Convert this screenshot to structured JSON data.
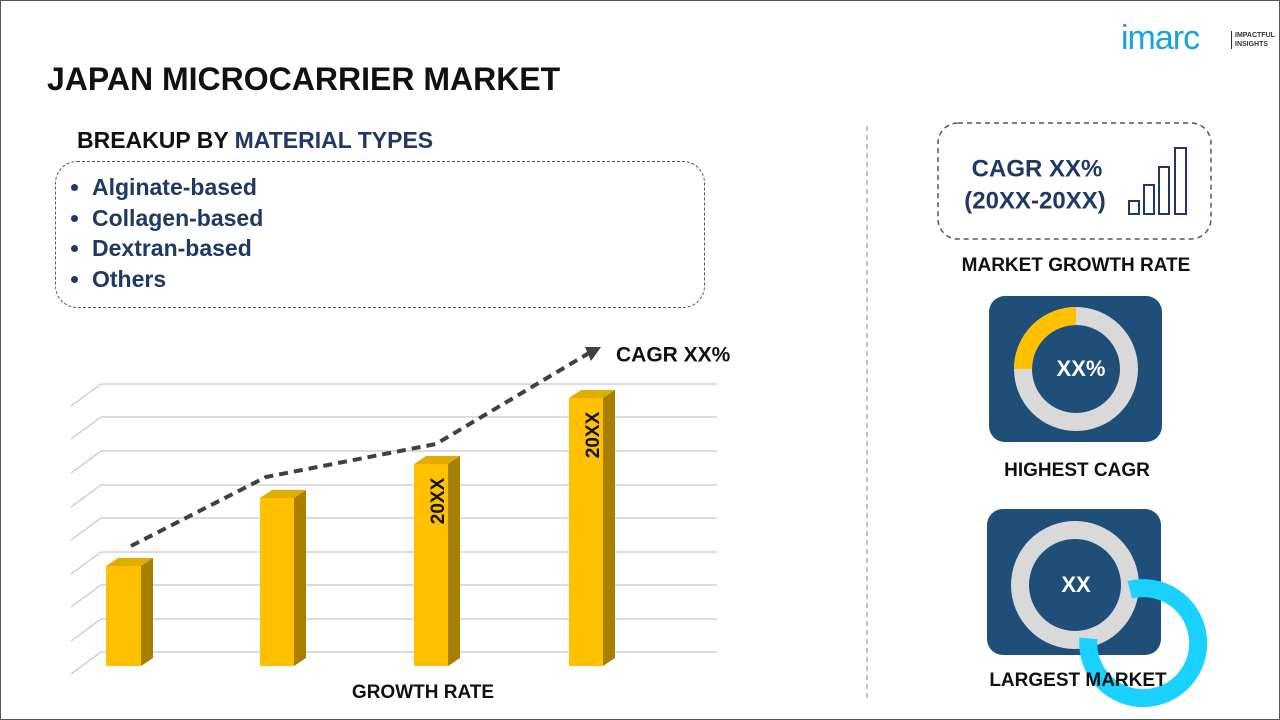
{
  "header": {
    "title": "JAPAN MICROCARRIER MARKET",
    "logo": "imarc",
    "tagline": [
      "IMPACTFUL",
      "INSIGHTS"
    ]
  },
  "breakup": {
    "label": "BREAKUP BY",
    "highlight": "MATERIAL TYPES",
    "items": [
      "Alginate-based",
      "Collagen-based",
      "Dextran-based",
      "Others"
    ]
  },
  "growth_chart": {
    "trend_label": "CAGR XX%",
    "bar_labels": [
      "20XX",
      "20XX"
    ],
    "axis_label": "GROWTH RATE"
  },
  "stats": {
    "cagr": "CAGR XX%",
    "period": "(20XX-20XX)",
    "cagr_caption": "MARKET GROWTH RATE",
    "highest_value": "XX%",
    "highest_caption": "HIGHEST CAGR",
    "largest_value": "XX",
    "largest_caption": "LARGEST MARKET"
  }
}
